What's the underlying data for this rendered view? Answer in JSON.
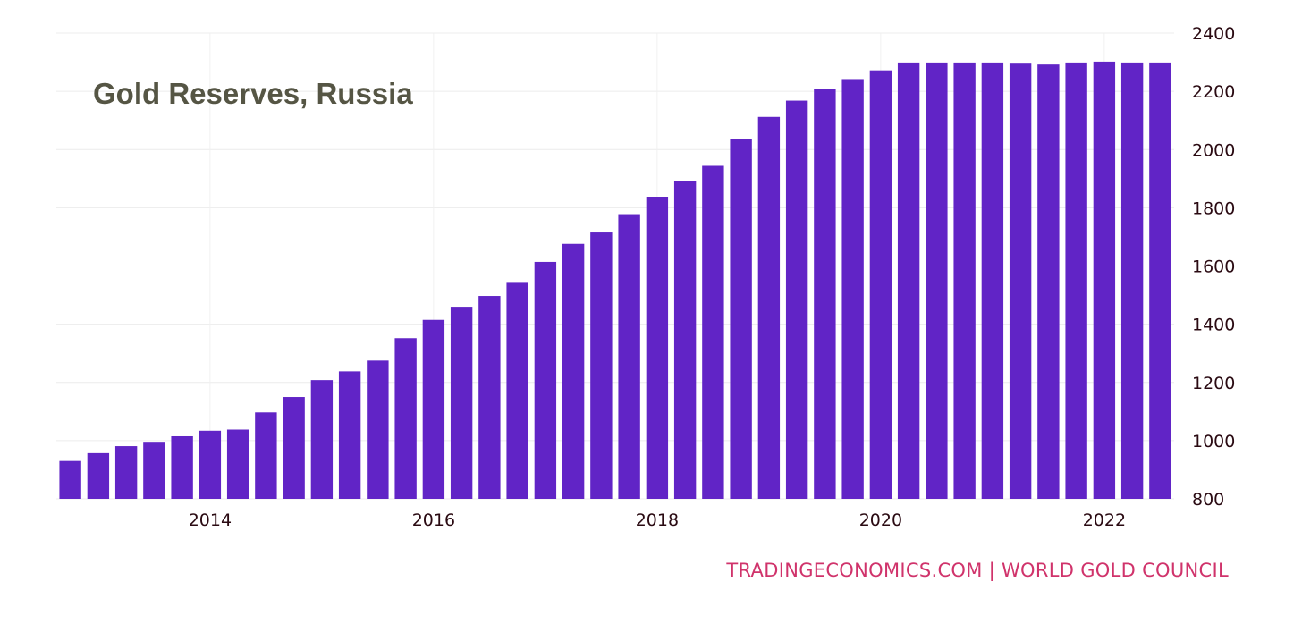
{
  "chart_data": {
    "type": "bar",
    "title": "Gold Reserves, Russia",
    "source": "TRADINGECONOMICS.COM  |  WORLD GOLD COUNCIL",
    "xlabel": "",
    "ylabel": "",
    "x_start": "2012-Q4",
    "x_tick_labels": [
      "2014",
      "2016",
      "2018",
      "2020",
      "2022"
    ],
    "y_tick_labels": [
      "800",
      "1000",
      "1200",
      "1400",
      "1600",
      "1800",
      "2000",
      "2200",
      "2400"
    ],
    "ylim": [
      800,
      2400
    ],
    "y_ticks": [
      800,
      1000,
      1200,
      1400,
      1600,
      1800,
      2000,
      2200,
      2400
    ],
    "y_axis_side": "right",
    "grid": true,
    "bar_color": "#6124c6",
    "values": [
      930,
      957,
      981,
      996,
      1015,
      1034,
      1038,
      1097,
      1150,
      1208,
      1238,
      1275,
      1352,
      1415,
      1460,
      1497,
      1542,
      1614,
      1676,
      1715,
      1778,
      1838,
      1891,
      1944,
      2035,
      2112,
      2168,
      2208,
      2242,
      2272,
      2299,
      2299,
      2299,
      2299,
      2295,
      2292,
      2299,
      2302,
      2299,
      2299
    ]
  }
}
